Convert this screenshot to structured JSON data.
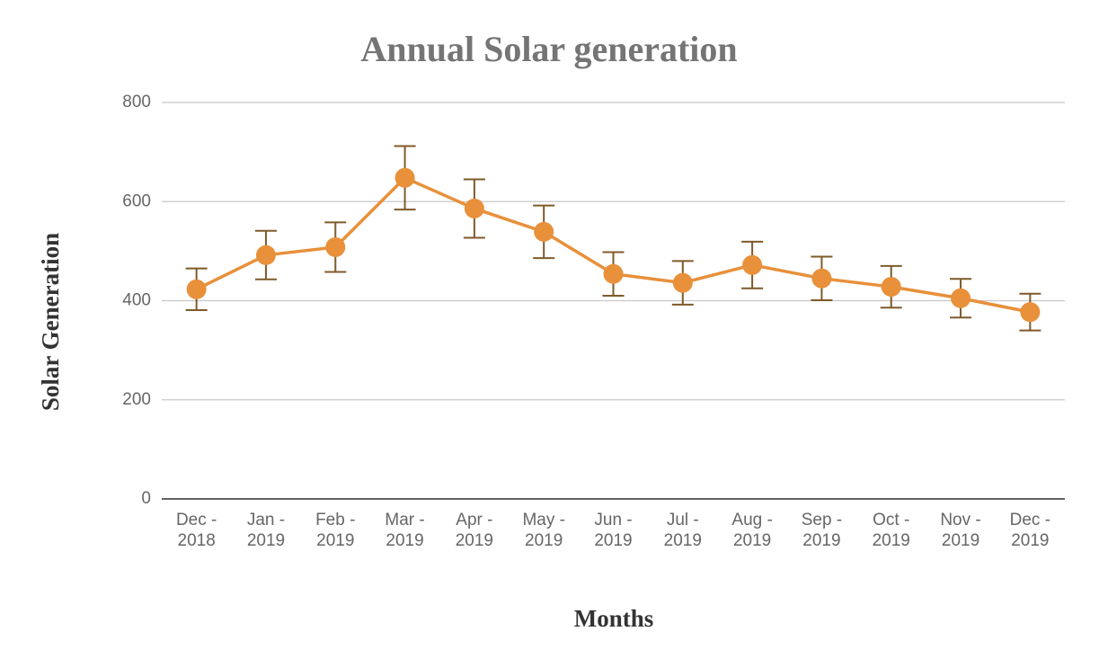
{
  "chart_data": {
    "type": "line",
    "title": "Annual Solar generation",
    "x_label": "Months",
    "y_label": "Solar Generation",
    "categories": [
      "Dec - 2018",
      "Jan - 2019",
      "Feb - 2019",
      "Mar - 2019",
      "Apr - 2019",
      "May - 2019",
      "Jun - 2019",
      "Jul - 2019",
      "Aug - 2019",
      "Sep - 2019",
      "Oct - 2019",
      "Nov - 2019",
      "Dec - 2019"
    ],
    "values": [
      423,
      492,
      508,
      648,
      586,
      539,
      454,
      436,
      472,
      445,
      428,
      405,
      377
    ],
    "errors": [
      42,
      49,
      50,
      64,
      59,
      53,
      44,
      44,
      47,
      44,
      42,
      39,
      37
    ],
    "color": "#e8903a",
    "error_color": "#7f5a2a",
    "ylim": [
      0,
      800
    ],
    "yticks": [
      0,
      200,
      400,
      600,
      800
    ],
    "grid": true
  }
}
